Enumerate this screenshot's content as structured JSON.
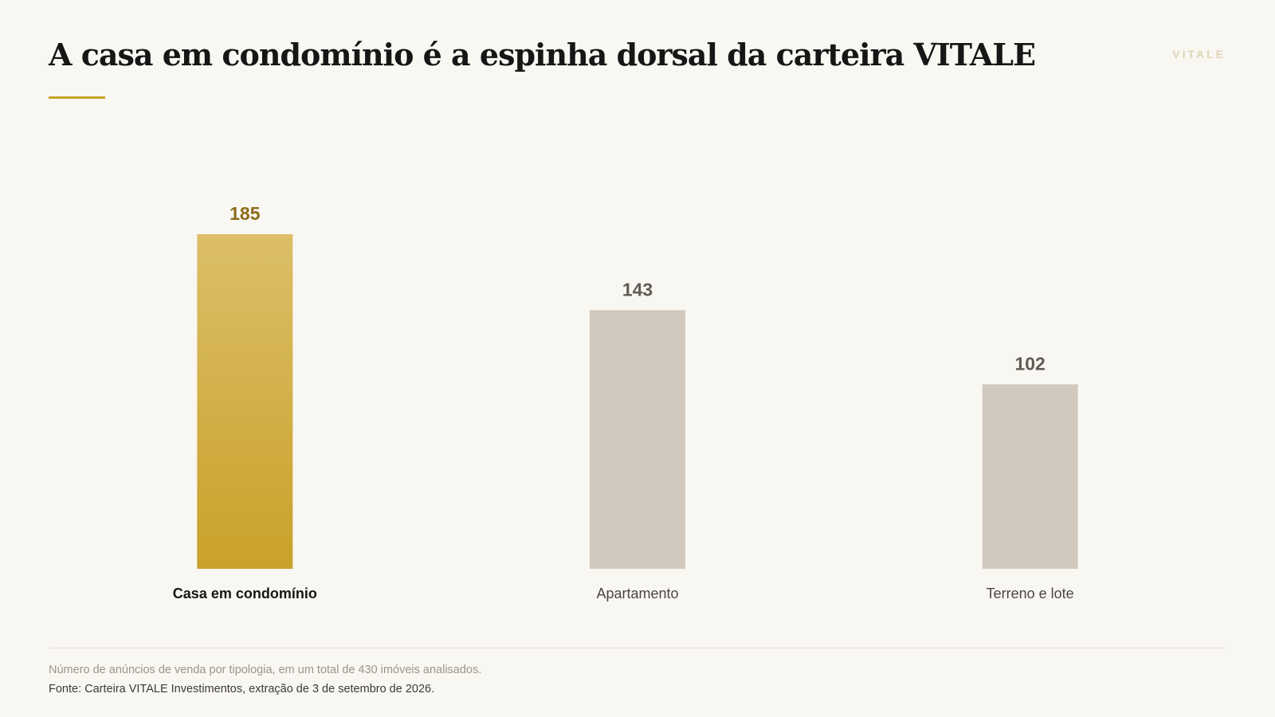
{
  "header": {
    "title": "A casa em condomínio é a espinha dorsal da carteira VITALE",
    "brand": "VITALE"
  },
  "footer": {
    "note": "Número de anúncios de venda por tipologia, em um total de 430 imóveis analisados.",
    "source": "Fonte: Carteira VITALE Investimentos, extração de 3 de setembro de 2026."
  },
  "colors": {
    "accent": "#c9a22a",
    "accent_light": "#dcbe68",
    "highlight_value": "#8c6d1b",
    "muted_bar": "#d1c9bd",
    "muted_value": "#5f5b55"
  },
  "chart_data": {
    "type": "bar",
    "categories": [
      "Casa em condomínio",
      "Apartamento",
      "Terreno e lote"
    ],
    "values": [
      185,
      143,
      102
    ],
    "highlight_index": 0,
    "title": "",
    "xlabel": "",
    "ylabel": "",
    "ylim": [
      0,
      185
    ],
    "grid": false,
    "legend": "none"
  }
}
